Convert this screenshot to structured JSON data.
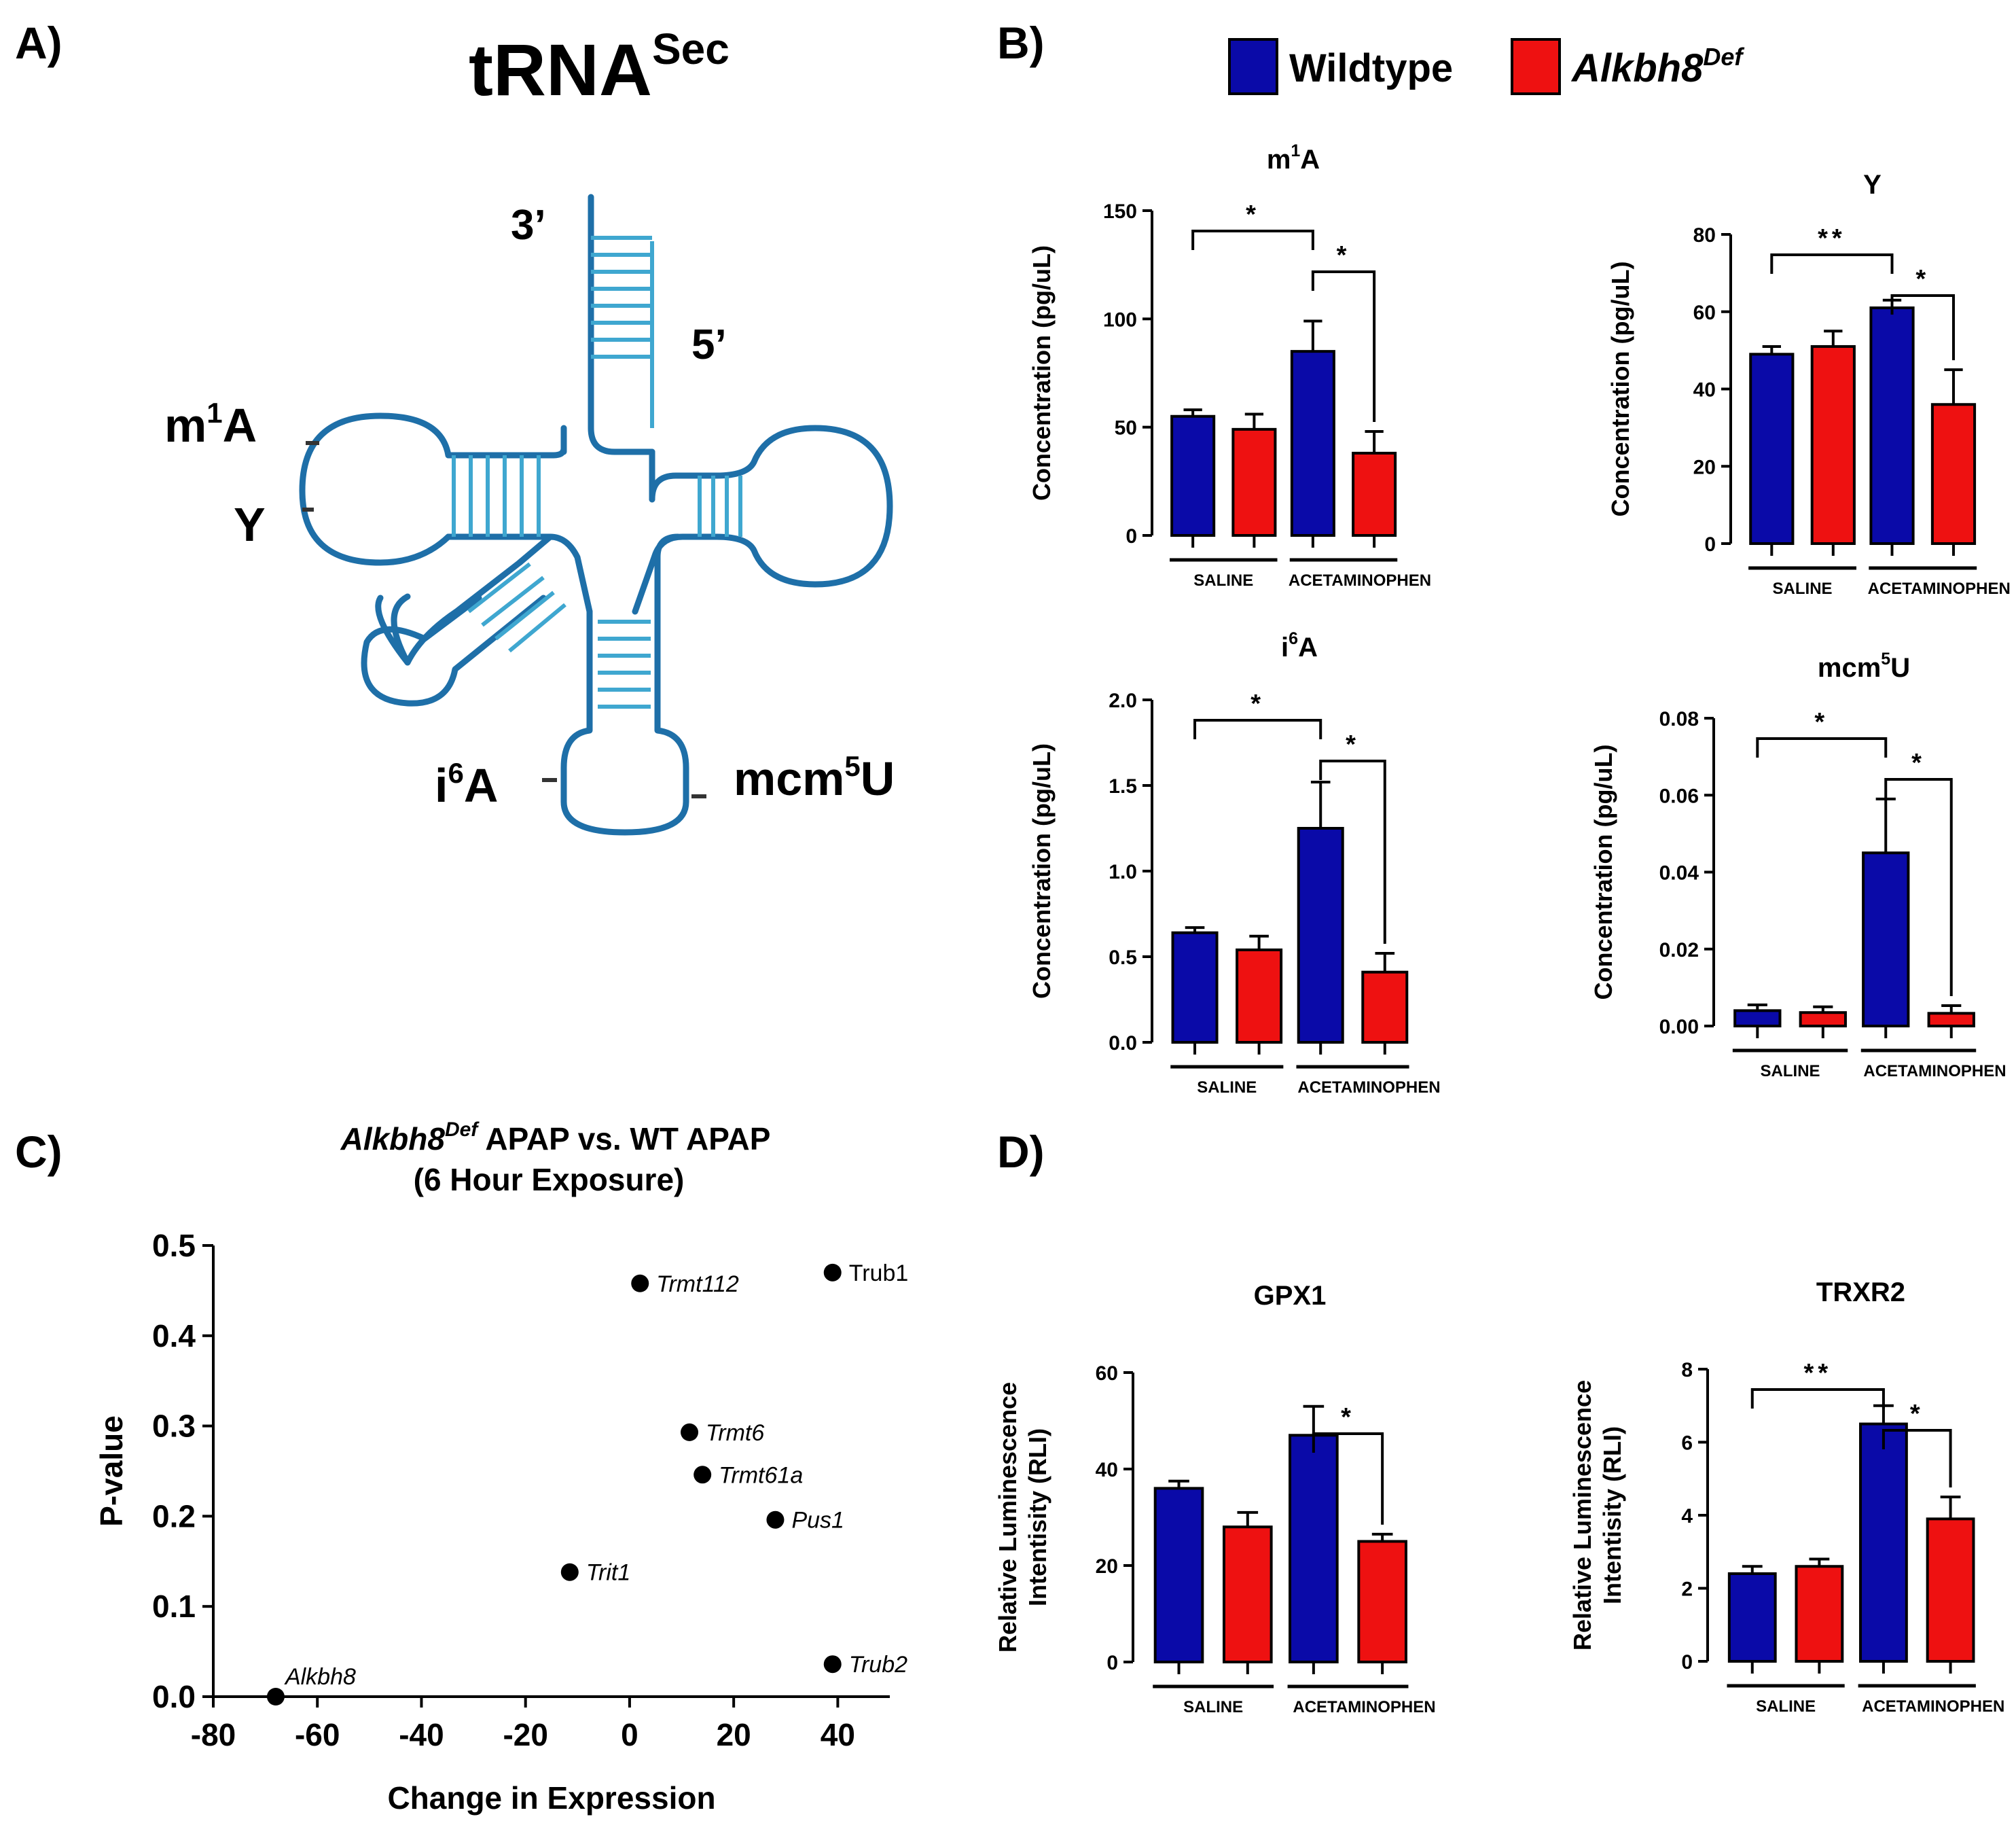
{
  "figure": {
    "panel_labels": {
      "a": "A)",
      "b": "B)",
      "c": "C)",
      "d": "D)"
    },
    "legend": {
      "items": [
        {
          "label": "Wildtype",
          "super": "",
          "italic": false,
          "color": "#0a0aa8"
        },
        {
          "label": "Alkbh8",
          "super": "Def",
          "italic": true,
          "color": "#ee1111"
        }
      ]
    },
    "colors": {
      "wildtype": "#0a0aa8",
      "mutant": "#ee1111",
      "trna": "#1e6fa8",
      "stem": "#3fa7d0"
    },
    "trna": {
      "title_main": "tRNA",
      "title_super": "Sec",
      "labels": {
        "three_prime": "3’",
        "five_prime": "5’",
        "m1a_base": "m",
        "m1a_super": "1",
        "m1a_tail": "A",
        "psi": "Y",
        "i6a_base": "i",
        "i6a_super": "6",
        "i6a_tail": "A",
        "mcm5u_base": "mcm",
        "mcm5u_super": "5",
        "mcm5u_tail": "U"
      }
    }
  },
  "chart_data": [
    {
      "id": "m1a",
      "type": "bar",
      "title": "m",
      "title_super": "1",
      "title_tail": "A",
      "ylabel": [
        "Concentration (pg/uL)"
      ],
      "ylim": [
        0,
        150
      ],
      "yticks": [
        0,
        50,
        100,
        150
      ],
      "ytick_labels": [
        "0",
        "50",
        "100",
        "150"
      ],
      "groups": [
        "SALINE",
        "ACETAMINOPHEN"
      ],
      "series": [
        {
          "name": "Wildtype",
          "values": [
            55,
            85
          ],
          "errors": [
            3,
            14
          ]
        },
        {
          "name": "Alkbh8Def",
          "values": [
            49,
            38
          ],
          "errors": [
            7,
            10
          ]
        }
      ],
      "significance": [
        {
          "from": "saline-wt",
          "to": "apap-wt",
          "label": "*"
        },
        {
          "from": "apap-wt",
          "to": "apap-mut",
          "label": "*"
        }
      ]
    },
    {
      "id": "psi",
      "type": "bar",
      "title": "Y",
      "title_super": "",
      "title_tail": "",
      "ylabel": [
        "Concentration (pg/uL)"
      ],
      "ylim": [
        0,
        80
      ],
      "yticks": [
        0,
        20,
        40,
        60,
        80
      ],
      "ytick_labels": [
        "0",
        "20",
        "40",
        "60",
        "80"
      ],
      "groups": [
        "SALINE",
        "ACETAMINOPHEN"
      ],
      "series": [
        {
          "name": "Wildtype",
          "values": [
            49,
            61
          ],
          "errors": [
            2,
            2
          ]
        },
        {
          "name": "Alkbh8Def",
          "values": [
            51,
            36
          ],
          "errors": [
            4,
            9
          ]
        }
      ],
      "significance": [
        {
          "from": "saline-wt",
          "to": "apap-wt",
          "label": "**"
        },
        {
          "from": "apap-wt",
          "to": "apap-mut",
          "label": "*"
        }
      ]
    },
    {
      "id": "i6a",
      "type": "bar",
      "title": "i",
      "title_super": "6",
      "title_tail": "A",
      "ylabel": [
        "Concentration (pg/uL)"
      ],
      "ylim": [
        0,
        2.0
      ],
      "yticks": [
        0,
        0.5,
        1.0,
        1.5,
        2.0
      ],
      "ytick_labels": [
        "0.0",
        "0.5",
        "1.0",
        "1.5",
        "2.0"
      ],
      "groups": [
        "SALINE",
        "ACETAMINOPHEN"
      ],
      "series": [
        {
          "name": "Wildtype",
          "values": [
            0.64,
            1.25
          ],
          "errors": [
            0.03,
            0.27
          ]
        },
        {
          "name": "Alkbh8Def",
          "values": [
            0.54,
            0.41
          ],
          "errors": [
            0.08,
            0.11
          ]
        }
      ],
      "significance": [
        {
          "from": "saline-wt",
          "to": "apap-wt",
          "label": "*"
        },
        {
          "from": "apap-wt",
          "to": "apap-mut",
          "label": "*"
        }
      ]
    },
    {
      "id": "mcm5u",
      "type": "bar",
      "title": "mcm",
      "title_super": "5",
      "title_tail": "U",
      "ylabel": [
        "Concentration (pg/uL)"
      ],
      "ylim": [
        0,
        0.08
      ],
      "yticks": [
        0,
        0.02,
        0.04,
        0.06,
        0.08
      ],
      "ytick_labels": [
        "0.00",
        "0.02",
        "0.04",
        "0.06",
        "0.08"
      ],
      "groups": [
        "SALINE",
        "ACETAMINOPHEN"
      ],
      "series": [
        {
          "name": "Wildtype",
          "values": [
            0.004,
            0.045
          ],
          "errors": [
            0.0015,
            0.014
          ]
        },
        {
          "name": "Alkbh8Def",
          "values": [
            0.0035,
            0.0033
          ],
          "errors": [
            0.0015,
            0.002
          ]
        }
      ],
      "significance": [
        {
          "from": "saline-wt",
          "to": "apap-wt",
          "label": "*"
        },
        {
          "from": "apap-wt",
          "to": "apap-mut",
          "label": "*"
        }
      ]
    },
    {
      "id": "gpx1",
      "type": "bar",
      "title": "GPX1",
      "title_super": "",
      "title_tail": "",
      "ylabel": [
        "Relative Luminescence",
        "Intentisity (RLI)"
      ],
      "ylim": [
        0,
        60
      ],
      "yticks": [
        0,
        20,
        40,
        60
      ],
      "ytick_labels": [
        "0",
        "20",
        "40",
        "60"
      ],
      "groups": [
        "SALINE",
        "ACETAMINOPHEN"
      ],
      "series": [
        {
          "name": "Wildtype",
          "values": [
            36,
            47
          ],
          "errors": [
            1.5,
            6
          ]
        },
        {
          "name": "Alkbh8Def",
          "values": [
            28,
            25
          ],
          "errors": [
            3,
            1.5
          ]
        }
      ],
      "significance": [
        {
          "from": "apap-wt",
          "to": "apap-mut",
          "label": "*"
        }
      ]
    },
    {
      "id": "trxr2",
      "type": "bar",
      "title": "TRXR2",
      "title_super": "",
      "title_tail": "",
      "ylabel": [
        "Relative Luminescence",
        "Intentisity (RLI)"
      ],
      "ylim": [
        0,
        8
      ],
      "yticks": [
        0,
        2,
        4,
        6,
        8
      ],
      "ytick_labels": [
        "0",
        "2",
        "4",
        "6",
        "8"
      ],
      "groups": [
        "SALINE",
        "ACETAMINOPHEN"
      ],
      "series": [
        {
          "name": "Wildtype",
          "values": [
            2.4,
            6.5
          ],
          "errors": [
            0.2,
            0.5
          ]
        },
        {
          "name": "Alkbh8Def",
          "values": [
            2.6,
            3.9
          ],
          "errors": [
            0.2,
            0.6
          ]
        }
      ],
      "significance": [
        {
          "from": "saline-wt",
          "to": "apap-wt",
          "label": "**"
        },
        {
          "from": "apap-wt",
          "to": "apap-mut",
          "label": "*"
        }
      ]
    },
    {
      "id": "scatter",
      "type": "scatter",
      "title_italic": "Alkbh8",
      "title_super": "Def",
      "title_rest": " APAP vs. WT APAP",
      "subtitle": "(6 Hour Exposure)",
      "xlabel": "Change in Expression",
      "ylabel": "P-value",
      "xlim": [
        -80,
        50
      ],
      "ylim": [
        0,
        0.5
      ],
      "xticks": [
        -80,
        -60,
        -40,
        -20,
        0,
        20,
        40
      ],
      "xtick_labels": [
        "-80",
        "-60",
        "-40",
        "-20",
        "0",
        "20",
        "40"
      ],
      "yticks": [
        0,
        0.1,
        0.2,
        0.3,
        0.4,
        0.5
      ],
      "ytick_labels": [
        "0.0",
        "0.1",
        "0.2",
        "0.3",
        "0.4",
        "0.5"
      ],
      "points": [
        {
          "label": "Alkbh8",
          "x": -68,
          "y": 0.0,
          "italic": true
        },
        {
          "label": "Trmt112",
          "x": 2,
          "y": 0.458,
          "italic": true
        },
        {
          "label": "Trub1",
          "x": 39,
          "y": 0.47,
          "italic": false
        },
        {
          "label": "Trmt6",
          "x": 11.5,
          "y": 0.293,
          "italic": true
        },
        {
          "label": "Trmt61a",
          "x": 14,
          "y": 0.246,
          "italic": true
        },
        {
          "label": "Pus1",
          "x": 28,
          "y": 0.196,
          "italic": true
        },
        {
          "label": "Trit1",
          "x": -11.5,
          "y": 0.138,
          "italic": true
        },
        {
          "label": "Trub2",
          "x": 39,
          "y": 0.036,
          "italic": true
        }
      ]
    }
  ]
}
